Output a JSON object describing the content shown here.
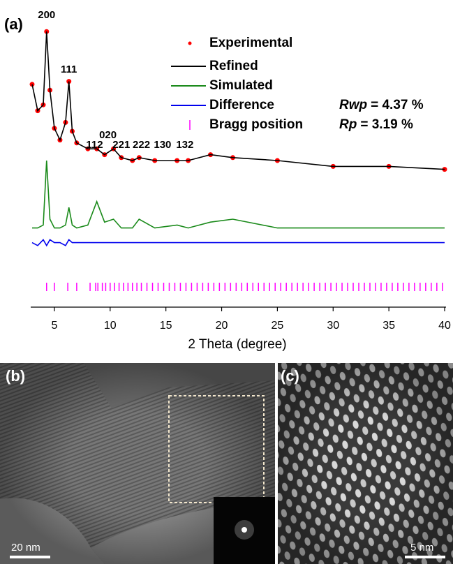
{
  "panel_labels": [
    "(a)",
    "(b)",
    "(c)"
  ],
  "scale_bars": [
    "20 nm",
    "5 nm"
  ],
  "chart_data": {
    "type": "line",
    "xlabel": "2 Theta (degree)",
    "x": [
      3,
      3.5,
      4,
      4.3,
      4.6,
      5,
      5.5,
      6,
      6.3,
      6.6,
      7,
      8,
      8.8,
      9.5,
      10.3,
      11,
      12,
      12.6,
      14,
      16,
      17,
      19,
      21,
      25,
      30,
      35,
      40
    ],
    "xlim": [
      3,
      40
    ],
    "xticks": [
      5,
      10,
      15,
      20,
      25,
      30,
      35,
      40
    ],
    "ylim": [
      0,
      100
    ],
    "series": [
      {
        "name": "Experimental",
        "color": "#ff0000",
        "mode": "markers",
        "values": [
          76,
          67,
          69,
          94,
          74,
          61,
          57,
          63,
          77,
          60,
          56,
          54,
          54,
          52,
          54,
          51,
          50,
          51,
          50,
          50,
          50,
          52,
          51,
          50,
          48,
          48,
          47
        ]
      },
      {
        "name": "Refined",
        "color": "#000000",
        "mode": "line",
        "values": [
          76,
          67,
          69,
          94,
          74,
          61,
          57,
          63,
          77,
          60,
          56,
          54,
          54,
          52,
          54,
          51,
          50,
          51,
          50,
          50,
          50,
          52,
          51,
          50,
          48,
          48,
          47
        ]
      },
      {
        "name": "Simulated",
        "color": "#1a8a1a",
        "mode": "line",
        "values": [
          27,
          27,
          28,
          50,
          30,
          27,
          27,
          28,
          34,
          28,
          27,
          28,
          36,
          29,
          30,
          27,
          27,
          30,
          27,
          28,
          27,
          29,
          30,
          27,
          27,
          27,
          27
        ]
      },
      {
        "name": "Difference",
        "color": "#0000ee",
        "mode": "line",
        "values": [
          22,
          21,
          23,
          21,
          23,
          22,
          22,
          21,
          23,
          22,
          22,
          22,
          22,
          22,
          22,
          22,
          22,
          22,
          22,
          22,
          22,
          22,
          22,
          22,
          22,
          22,
          22
        ]
      }
    ],
    "bragg": {
      "name": "Bragg position",
      "color": "#ff00ff",
      "x": [
        4.3,
        5.0,
        6.2,
        7.0,
        8.2,
        8.7,
        8.9,
        9.3,
        9.6,
        10.0,
        10.4,
        10.8,
        11.2,
        11.6,
        12.0,
        12.4,
        12.8,
        13.3,
        13.8,
        14.3,
        14.8,
        15.3,
        15.8,
        16.3,
        16.8,
        17.3,
        17.8,
        18.3,
        18.8,
        19.3,
        19.8,
        20.3,
        20.8,
        21.3,
        21.8,
        22.3,
        22.8,
        23.3,
        23.8,
        24.3,
        24.8,
        25.3,
        25.8,
        26.3,
        26.8,
        27.3,
        27.8,
        28.3,
        28.8,
        29.3,
        29.8,
        30.3,
        30.8,
        31.3,
        31.8,
        32.3,
        32.8,
        33.3,
        33.8,
        34.3,
        34.8,
        35.3,
        35.8,
        36.3,
        36.8,
        37.3,
        37.8,
        38.3,
        38.8,
        39.3,
        39.8
      ]
    },
    "peak_labels": [
      {
        "text": "200",
        "x": 4.3
      },
      {
        "text": "111",
        "x": 6.3
      },
      {
        "text": "112",
        "x": 8.6
      },
      {
        "text": "020",
        "x": 9.8
      },
      {
        "text": "221",
        "x": 11.0
      },
      {
        "text": "222",
        "x": 12.8
      },
      {
        "text": "130",
        "x": 14.7
      },
      {
        "text": "132",
        "x": 16.7
      }
    ],
    "fit_stats": [
      {
        "label": "Rwp",
        "text": "= 4.37 %"
      },
      {
        "label": "Rp",
        "text": "= 3.19 %"
      }
    ]
  }
}
